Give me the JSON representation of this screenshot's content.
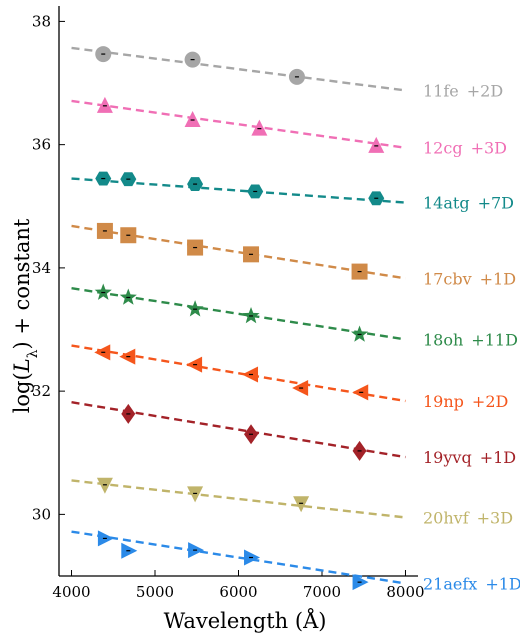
{
  "chart_data": {
    "type": "scatter",
    "xlabel": "Wavelength (Å)",
    "ylabel": "log(Lλ) + constant",
    "ylabel_main": "log(",
    "ylabel_sym": "L",
    "ylabel_sub": "λ",
    "ylabel_tail": ") + constant",
    "xlim": [
      3850,
      8150
    ],
    "ylim": [
      29.0,
      38.25
    ],
    "xticks": [
      4000,
      5000,
      6000,
      7000,
      8000
    ],
    "yticks": [
      30,
      32,
      34,
      36,
      38
    ],
    "grid": false,
    "legend": "none",
    "series": [
      {
        "name": "11fe",
        "label_suffix": "+2D",
        "color": "#a6a6a6",
        "marker": "circle",
        "points": [
          [
            4380,
            37.47
          ],
          [
            5450,
            37.38
          ],
          [
            6700,
            37.1
          ]
        ],
        "fit": [
          [
            4000,
            37.57
          ],
          [
            8000,
            36.88
          ]
        ]
      },
      {
        "name": "12cg",
        "label_suffix": "+3D",
        "color": "#f06fb5",
        "marker": "triangle-up",
        "points": [
          [
            4400,
            36.63
          ],
          [
            5450,
            36.4
          ],
          [
            6250,
            36.26
          ],
          [
            7650,
            35.98
          ]
        ],
        "fit": [
          [
            4000,
            36.71
          ],
          [
            8000,
            35.95
          ]
        ]
      },
      {
        "name": "14atg",
        "label_suffix": "+7D",
        "color": "#138a8a",
        "marker": "hexagon",
        "points": [
          [
            4380,
            35.45
          ],
          [
            4680,
            35.44
          ],
          [
            5480,
            35.36
          ],
          [
            6200,
            35.24
          ],
          [
            7650,
            35.13
          ]
        ],
        "fit": [
          [
            4000,
            35.45
          ],
          [
            8000,
            35.06
          ]
        ]
      },
      {
        "name": "17cbv",
        "label_suffix": "+1D",
        "color": "#d08a48",
        "marker": "square",
        "points": [
          [
            4400,
            34.6
          ],
          [
            4680,
            34.53
          ],
          [
            5480,
            34.33
          ],
          [
            6150,
            34.22
          ],
          [
            7450,
            33.94
          ]
        ],
        "fit": [
          [
            4000,
            34.68
          ],
          [
            8000,
            33.83
          ]
        ]
      },
      {
        "name": "18oh",
        "label_suffix": "+11D",
        "color": "#2e8b4a",
        "marker": "star",
        "points": [
          [
            4380,
            33.6
          ],
          [
            4680,
            33.52
          ],
          [
            5480,
            33.33
          ],
          [
            6150,
            33.22
          ],
          [
            7450,
            32.92
          ]
        ],
        "fit": [
          [
            4000,
            33.67
          ],
          [
            8000,
            32.84
          ]
        ]
      },
      {
        "name": "19np",
        "label_suffix": "+2D",
        "color": "#f5561c",
        "marker": "triangle-left",
        "points": [
          [
            4380,
            32.63
          ],
          [
            4680,
            32.56
          ],
          [
            5480,
            32.43
          ],
          [
            6150,
            32.27
          ],
          [
            6750,
            32.05
          ],
          [
            7470,
            31.98
          ]
        ],
        "fit": [
          [
            4000,
            32.74
          ],
          [
            8000,
            31.84
          ]
        ]
      },
      {
        "name": "19yvq",
        "label_suffix": "+1D",
        "color": "#a32228",
        "marker": "diamond",
        "points": [
          [
            4680,
            31.63
          ],
          [
            6150,
            31.3
          ],
          [
            7450,
            31.03
          ]
        ],
        "fit": [
          [
            4000,
            31.82
          ],
          [
            8000,
            30.93
          ]
        ]
      },
      {
        "name": "20hvf",
        "label_suffix": "+3D",
        "color": "#c0b46a",
        "marker": "triangle-down",
        "points": [
          [
            4400,
            30.48
          ],
          [
            5480,
            30.34
          ],
          [
            6750,
            30.18
          ]
        ],
        "fit": [
          [
            4000,
            30.55
          ],
          [
            8000,
            29.95
          ]
        ]
      },
      {
        "name": "21aefx",
        "label_suffix": "+1D",
        "color": "#2b8ae8",
        "marker": "triangle-right",
        "points": [
          [
            4400,
            29.61
          ],
          [
            4680,
            29.41
          ],
          [
            5480,
            29.42
          ],
          [
            6150,
            29.3
          ],
          [
            7450,
            28.9
          ]
        ],
        "fit": [
          [
            4000,
            29.72
          ],
          [
            8000,
            28.88
          ]
        ]
      }
    ]
  }
}
